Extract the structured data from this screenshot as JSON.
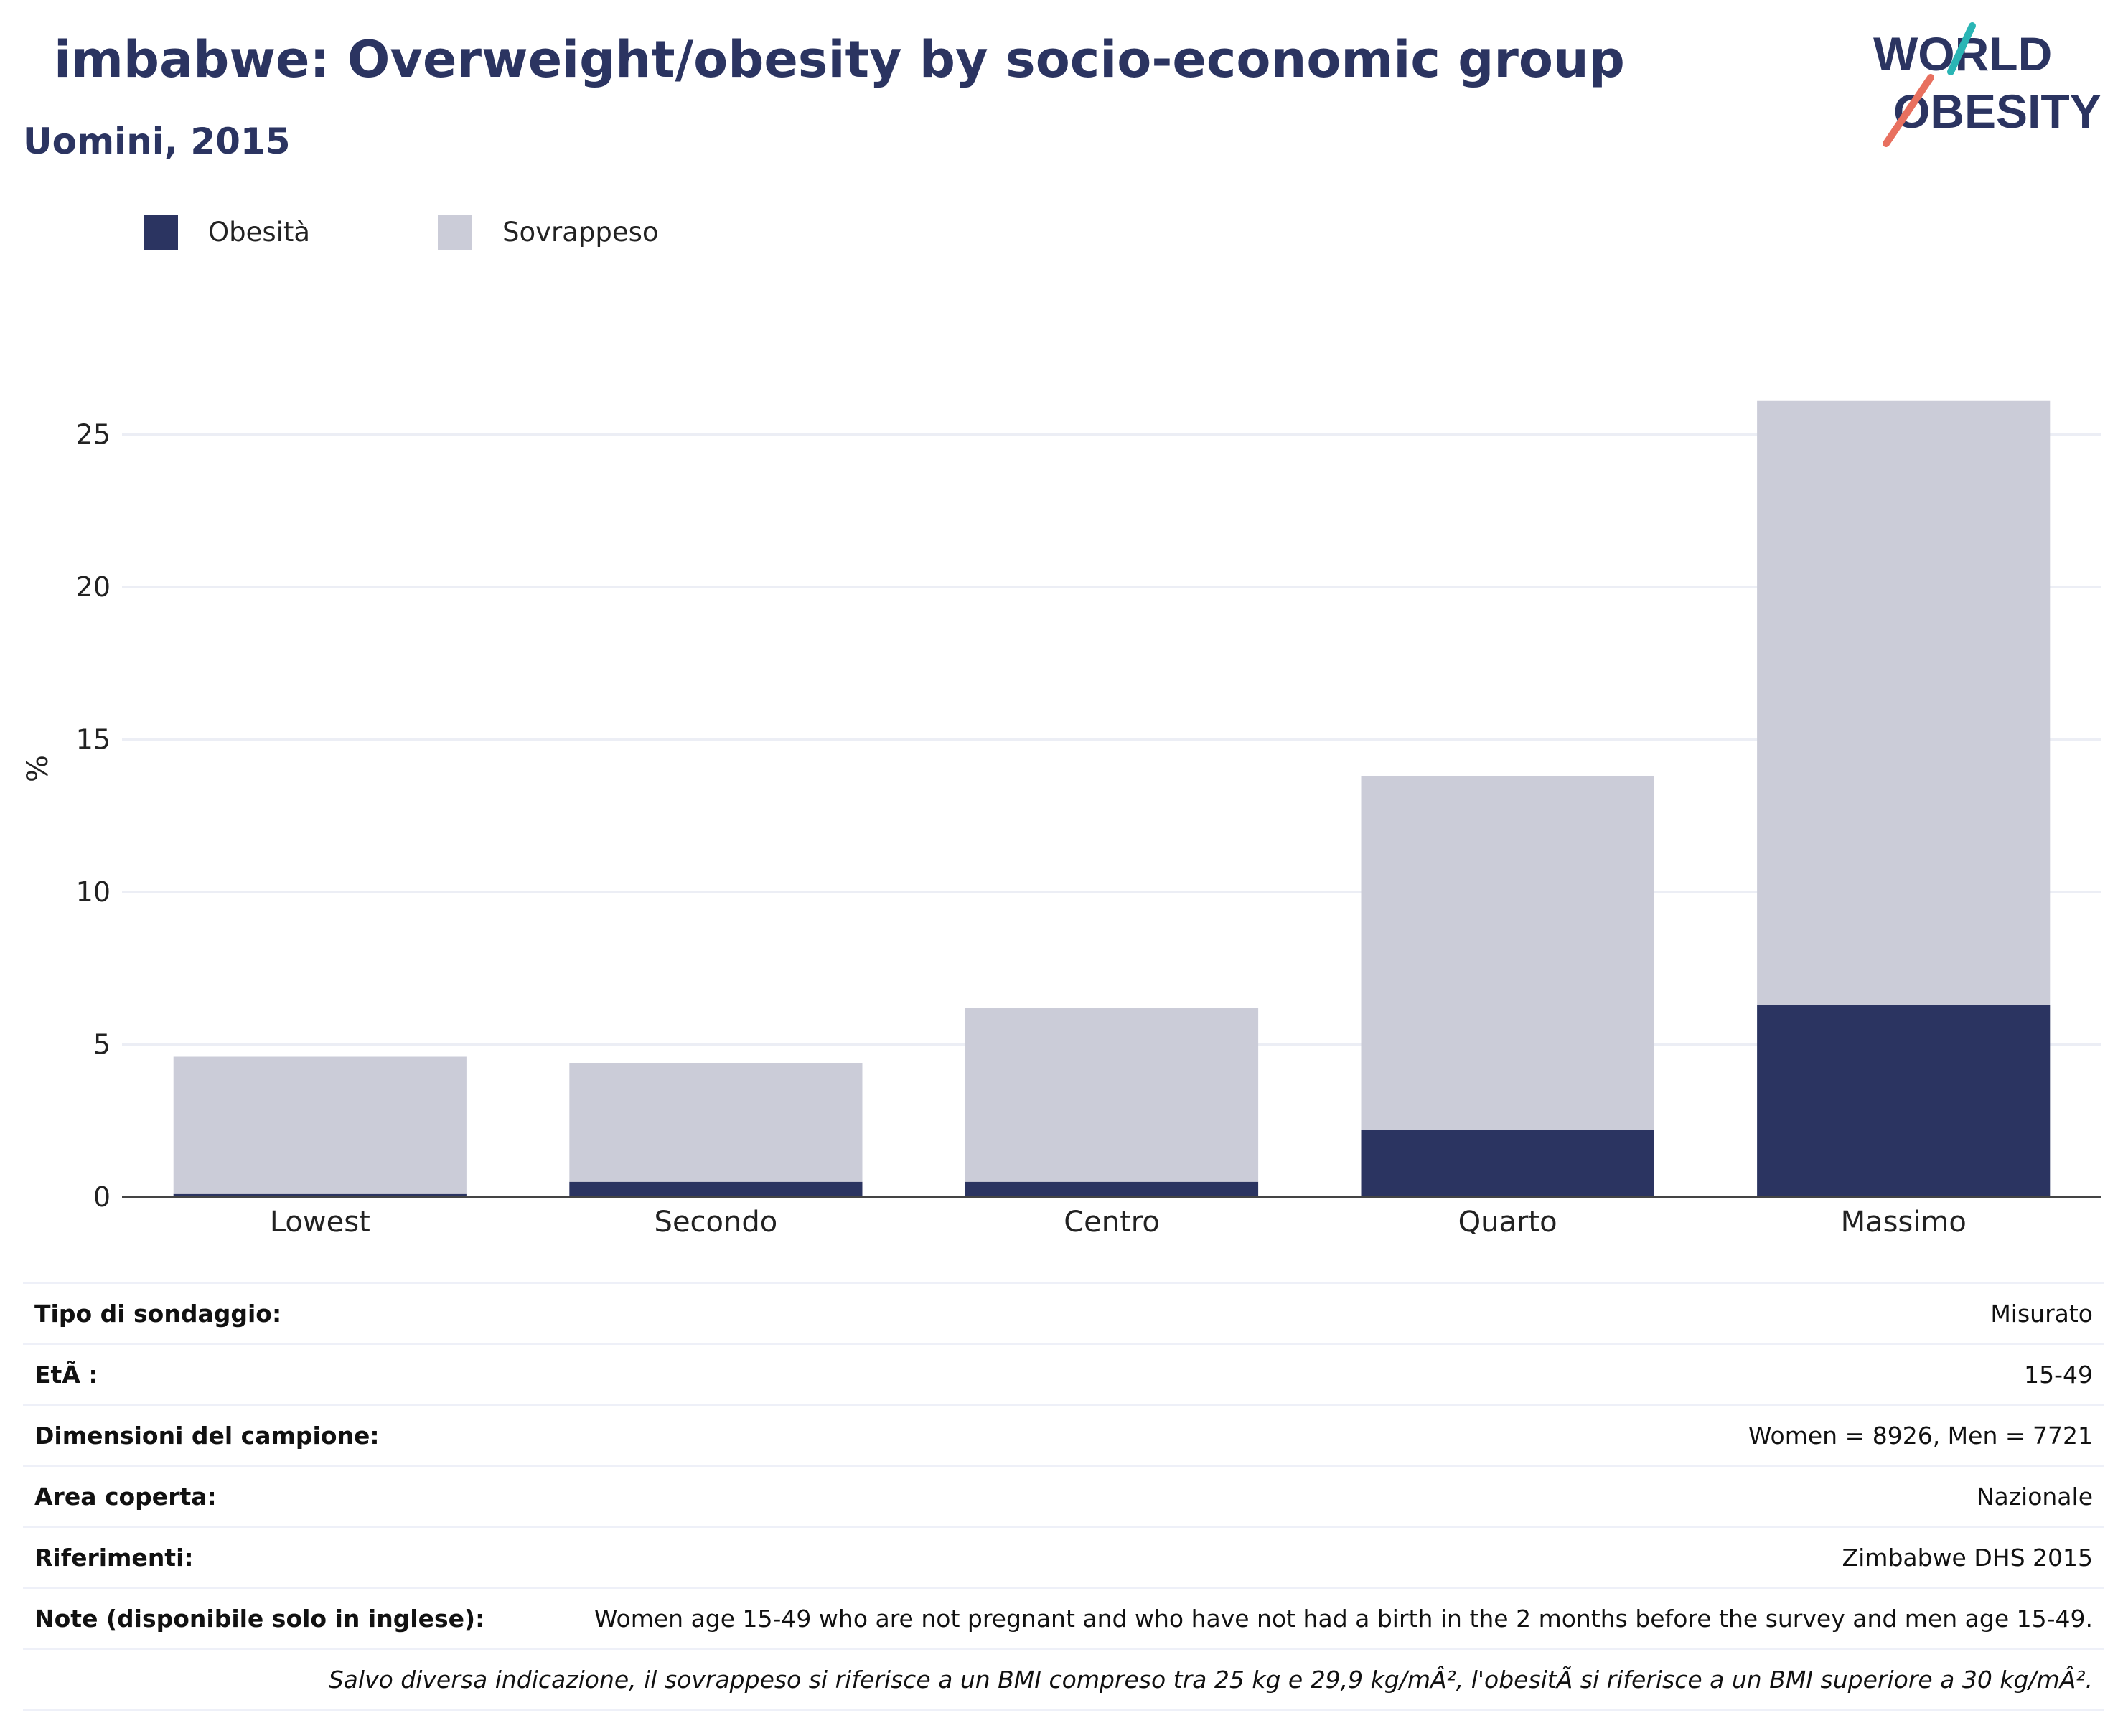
{
  "header": {
    "title": "imbabwe: Overweight/obesity by socio-economic group",
    "subtitle": "Uomini, 2015",
    "logo_text": "WORLD OBESITY"
  },
  "colors": {
    "obesity": "#2b3461",
    "overweight": "#cbccd8",
    "title": "#2b3461",
    "logo_teal": "#2ab5b5",
    "logo_coral": "#e8705f"
  },
  "legend": [
    {
      "label": "Obesità",
      "color": "#2b3461"
    },
    {
      "label": "Sovrappeso",
      "color": "#cbccd8"
    }
  ],
  "chart_data": {
    "type": "bar",
    "stacked": true,
    "categories": [
      "Lowest",
      "Secondo",
      "Centro",
      "Quarto",
      "Massimo"
    ],
    "series": [
      {
        "name": "Obesità",
        "values": [
          0.1,
          0.5,
          0.5,
          2.2,
          6.3
        ]
      },
      {
        "name": "Sovrappeso",
        "values": [
          4.5,
          3.9,
          5.7,
          11.6,
          19.8
        ]
      }
    ],
    "title": "",
    "xlabel": "",
    "ylabel": "%",
    "ylim": [
      0,
      27
    ],
    "yticks": [
      0,
      5,
      10,
      15,
      20,
      25
    ],
    "grid": true,
    "legend_position": "top-left"
  },
  "info_table": [
    {
      "label": "Tipo di sondaggio:",
      "value": "Misurato"
    },
    {
      "label": "EtÃ :",
      "value": "15-49"
    },
    {
      "label": "Dimensioni del campione:",
      "value": "Women = 8926, Men = 7721"
    },
    {
      "label": "Area coperta:",
      "value": "Nazionale"
    },
    {
      "label": "Riferimenti:",
      "value": "Zimbabwe DHS 2015"
    },
    {
      "label": "Note (disponibile solo in inglese):",
      "value": "Women age 15-49 who are not pregnant and who have not had a birth in the 2 months before the survey and men age 15-49."
    }
  ],
  "footnote": "Salvo diversa indicazione, il sovrappeso si riferisce a un BMI compreso tra 25 kg e 29,9 kg/mÂ², l'obesitÃ  si riferisce a un BMI superiore a 30 kg/mÂ²."
}
